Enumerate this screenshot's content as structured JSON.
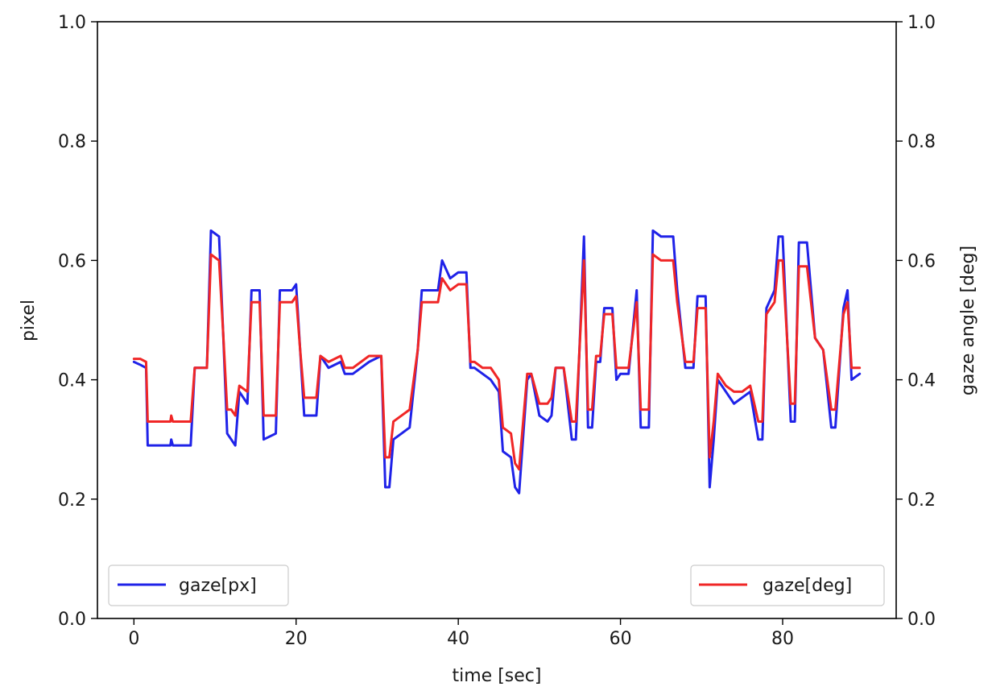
{
  "chart_data": {
    "type": "line",
    "xlabel": "time [sec]",
    "ylabel": "pixel",
    "ylabel_right": "gaze angle [deg]",
    "xlim": [
      -4.5,
      94
    ],
    "ylim": [
      0.0,
      1.0
    ],
    "ylim_right": [
      0.0,
      1.0
    ],
    "xticks": [
      0,
      20,
      40,
      60,
      80
    ],
    "yticks": [
      0.0,
      0.2,
      0.4,
      0.6,
      0.8,
      1.0
    ],
    "xtick_labels": [
      "0",
      "20",
      "40",
      "60",
      "80"
    ],
    "ytick_labels": [
      "0.0",
      "0.2",
      "0.4",
      "0.6",
      "0.8",
      "1.0"
    ],
    "ytick_labels_right": [
      "0.0",
      "0.2",
      "0.4",
      "0.6",
      "0.8",
      "1.0"
    ],
    "grid": false,
    "series": [
      {
        "name": "gaze[px]",
        "axis": "left",
        "color": "#1f22e8",
        "legend_placement": "lower-left",
        "x": [
          0,
          0.8,
          1.5,
          1.7,
          2.0,
          4.5,
          4.6,
          4.8,
          7.0,
          7.5,
          7.8,
          9.0,
          9.5,
          10.5,
          11.0,
          11.5,
          12.0,
          12.5,
          13.0,
          14.0,
          14.5,
          15.5,
          16.0,
          17.5,
          18.0,
          19.5,
          20.0,
          20.5,
          21.0,
          22.5,
          23.0,
          24.0,
          25.5,
          26.0,
          27.0,
          28.0,
          29.0,
          30.5,
          31.0,
          31.5,
          32.0,
          33.0,
          34.0,
          35.0,
          35.5,
          36.5,
          37.5,
          38.0,
          39.0,
          40.0,
          41.0,
          41.5,
          42.0,
          43.0,
          44.0,
          45.0,
          45.5,
          46.5,
          47.0,
          47.5,
          48.5,
          49.0,
          50.0,
          51.0,
          51.5,
          52.0,
          53.0,
          54.0,
          54.5,
          55.5,
          56.0,
          56.5,
          57.0,
          57.5,
          58.0,
          59.0,
          59.5,
          60.0,
          61.0,
          62.0,
          62.5,
          63.5,
          64.0,
          65.0,
          66.5,
          67.0,
          68.0,
          69.0,
          69.5,
          70.5,
          71.0,
          71.5,
          72.0,
          73.0,
          74.0,
          75.0,
          76.0,
          77.0,
          77.5,
          78.0,
          79.0,
          79.5,
          80.0,
          81.0,
          81.5,
          82.0,
          83.0,
          84.0,
          85.0,
          86.0,
          86.5,
          87.5,
          88.0,
          88.5,
          89.5
        ],
        "values": [
          0.43,
          0.425,
          0.42,
          0.29,
          0.29,
          0.29,
          0.3,
          0.29,
          0.29,
          0.42,
          0.42,
          0.42,
          0.65,
          0.64,
          0.48,
          0.31,
          0.3,
          0.29,
          0.38,
          0.36,
          0.55,
          0.55,
          0.3,
          0.31,
          0.55,
          0.55,
          0.56,
          0.45,
          0.34,
          0.34,
          0.44,
          0.42,
          0.43,
          0.41,
          0.41,
          0.42,
          0.43,
          0.44,
          0.22,
          0.22,
          0.3,
          0.31,
          0.32,
          0.45,
          0.55,
          0.55,
          0.55,
          0.6,
          0.57,
          0.58,
          0.58,
          0.42,
          0.42,
          0.41,
          0.4,
          0.38,
          0.28,
          0.27,
          0.22,
          0.21,
          0.4,
          0.41,
          0.34,
          0.33,
          0.34,
          0.42,
          0.42,
          0.3,
          0.3,
          0.64,
          0.32,
          0.32,
          0.43,
          0.43,
          0.52,
          0.52,
          0.4,
          0.41,
          0.41,
          0.55,
          0.32,
          0.32,
          0.65,
          0.64,
          0.64,
          0.55,
          0.42,
          0.42,
          0.54,
          0.54,
          0.22,
          0.3,
          0.4,
          0.38,
          0.36,
          0.37,
          0.38,
          0.3,
          0.3,
          0.52,
          0.55,
          0.64,
          0.64,
          0.33,
          0.33,
          0.63,
          0.63,
          0.47,
          0.45,
          0.32,
          0.32,
          0.52,
          0.55,
          0.4,
          0.41
        ]
      },
      {
        "name": "gaze[deg]",
        "axis": "right",
        "color": "#f02626",
        "legend_placement": "lower-right",
        "x": [
          0,
          0.8,
          1.5,
          1.7,
          2.0,
          4.5,
          4.6,
          4.8,
          7.0,
          7.5,
          7.8,
          9.0,
          9.5,
          10.5,
          11.0,
          11.5,
          12.0,
          12.5,
          13.0,
          14.0,
          14.5,
          15.5,
          16.0,
          17.5,
          18.0,
          19.5,
          20.0,
          20.5,
          21.0,
          22.5,
          23.0,
          24.0,
          25.5,
          26.0,
          27.0,
          28.0,
          29.0,
          30.5,
          31.0,
          31.5,
          32.0,
          33.0,
          34.0,
          35.0,
          35.5,
          36.5,
          37.5,
          38.0,
          39.0,
          40.0,
          41.0,
          41.5,
          42.0,
          43.0,
          44.0,
          45.0,
          45.5,
          46.5,
          47.0,
          47.5,
          48.5,
          49.0,
          50.0,
          51.0,
          51.5,
          52.0,
          53.0,
          54.0,
          54.5,
          55.5,
          56.0,
          56.5,
          57.0,
          57.5,
          58.0,
          59.0,
          59.5,
          60.0,
          61.0,
          62.0,
          62.5,
          63.5,
          64.0,
          65.0,
          66.5,
          67.0,
          68.0,
          69.0,
          69.5,
          70.5,
          71.0,
          71.5,
          72.0,
          73.0,
          74.0,
          75.0,
          76.0,
          77.0,
          77.5,
          78.0,
          79.0,
          79.5,
          80.0,
          81.0,
          81.5,
          82.0,
          83.0,
          84.0,
          85.0,
          86.0,
          86.5,
          87.5,
          88.0,
          88.5,
          89.5
        ],
        "values": [
          0.435,
          0.435,
          0.43,
          0.33,
          0.33,
          0.33,
          0.34,
          0.33,
          0.33,
          0.42,
          0.42,
          0.42,
          0.61,
          0.6,
          0.48,
          0.35,
          0.35,
          0.34,
          0.39,
          0.38,
          0.53,
          0.53,
          0.34,
          0.34,
          0.53,
          0.53,
          0.54,
          0.45,
          0.37,
          0.37,
          0.44,
          0.43,
          0.44,
          0.42,
          0.42,
          0.43,
          0.44,
          0.44,
          0.27,
          0.27,
          0.33,
          0.34,
          0.35,
          0.45,
          0.53,
          0.53,
          0.53,
          0.57,
          0.55,
          0.56,
          0.56,
          0.43,
          0.43,
          0.42,
          0.42,
          0.4,
          0.32,
          0.31,
          0.26,
          0.25,
          0.41,
          0.41,
          0.36,
          0.36,
          0.37,
          0.42,
          0.42,
          0.33,
          0.33,
          0.6,
          0.35,
          0.35,
          0.44,
          0.44,
          0.51,
          0.51,
          0.42,
          0.42,
          0.42,
          0.53,
          0.35,
          0.35,
          0.61,
          0.6,
          0.6,
          0.53,
          0.43,
          0.43,
          0.52,
          0.52,
          0.27,
          0.33,
          0.41,
          0.39,
          0.38,
          0.38,
          0.39,
          0.33,
          0.33,
          0.51,
          0.53,
          0.6,
          0.6,
          0.36,
          0.36,
          0.59,
          0.59,
          0.47,
          0.45,
          0.35,
          0.35,
          0.51,
          0.53,
          0.42,
          0.42
        ]
      }
    ]
  }
}
